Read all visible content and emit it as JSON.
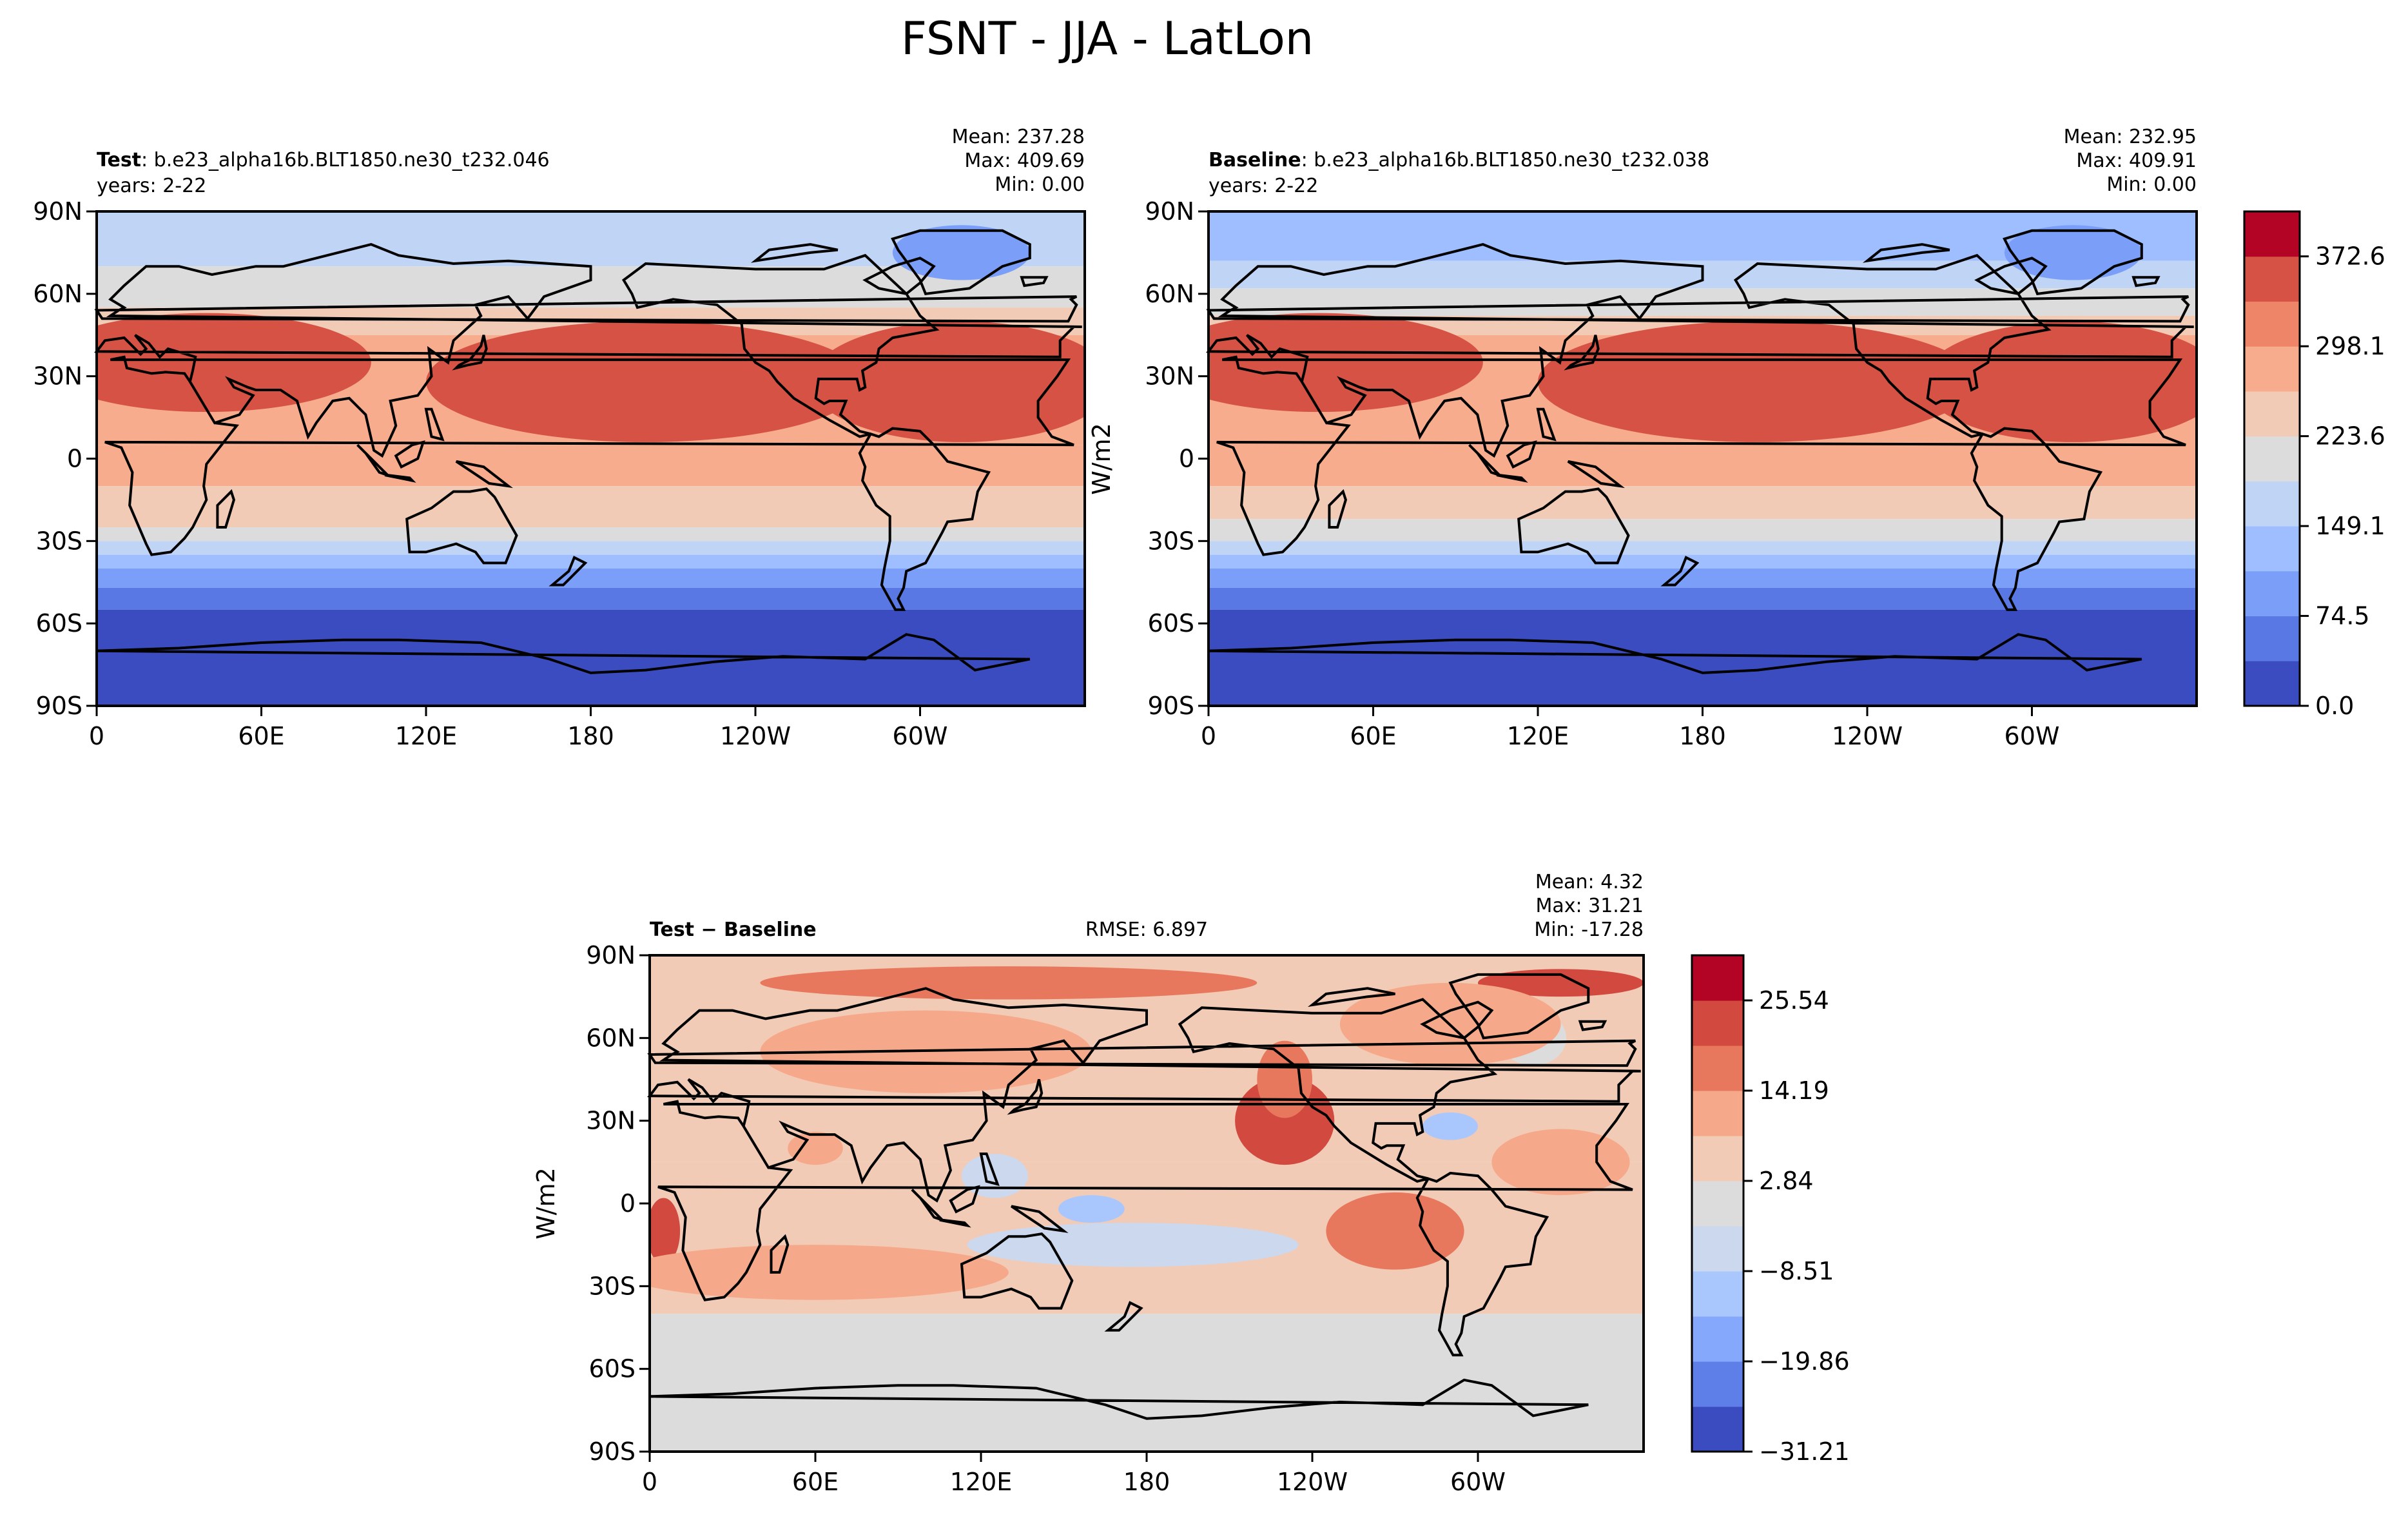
{
  "figure_title": "FSNT - JJA - LatLon",
  "colors": {
    "ocean_land_outline": "#000000",
    "main_scale": [
      "#3b4cc0",
      "#5a78e4",
      "#7b9ff9",
      "#9ebeff",
      "#c0d4f5",
      "#dddcdc",
      "#f2cbb7",
      "#f7ac8e",
      "#ee8468",
      "#d65244",
      "#b40426"
    ],
    "diff_scale": [
      "#3b4cc0",
      "#5f7fe8",
      "#85a8fc",
      "#aac7fd",
      "#cbd8ee",
      "#dddcdc",
      "#f2cbb7",
      "#f6a98a",
      "#e8785d",
      "#d1493f",
      "#b40426"
    ]
  },
  "chart_data": [
    {
      "type": "heatmap",
      "panel": "test",
      "label_bold": "Test",
      "label_rest": ": b.e23_alpha16b.BLT1850.ne30_t232.046",
      "years": "years: 2-22",
      "stats": [
        "Mean: 237.28",
        "Max: 409.69",
        "Min:  0.00"
      ],
      "x_ticks": [
        "0",
        "60E",
        "120E",
        "180",
        "120W",
        "60W"
      ],
      "y_ticks": [
        "90N",
        "60N",
        "30N",
        "0",
        "30S",
        "60S",
        "90S"
      ],
      "x_range": [
        0,
        360
      ],
      "y_range": [
        -90,
        90
      ],
      "zonal_bands": [
        {
          "lat": [
            70,
            90
          ],
          "level": 4
        },
        {
          "lat": [
            55,
            70
          ],
          "level": 5
        },
        {
          "lat": [
            45,
            55
          ],
          "level": 6
        },
        {
          "lat": [
            5,
            45
          ],
          "level": 7
        },
        {
          "lat": [
            -10,
            5
          ],
          "level": 7
        },
        {
          "lat": [
            -25,
            -10
          ],
          "level": 6
        },
        {
          "lat": [
            -30,
            -25
          ],
          "level": 5
        },
        {
          "lat": [
            -35,
            -30
          ],
          "level": 4
        },
        {
          "lat": [
            -40,
            -35
          ],
          "level": 3
        },
        {
          "lat": [
            -47,
            -40
          ],
          "level": 2
        },
        {
          "lat": [
            -55,
            -47
          ],
          "level": 1
        },
        {
          "lat": [
            -90,
            -55
          ],
          "level": 0
        }
      ],
      "hotspots": [
        {
          "lon": 205,
          "lat": 28,
          "rx": 50,
          "ry": 12,
          "level": 10
        },
        {
          "lon": 320,
          "lat": 30,
          "rx": 40,
          "ry": 14,
          "level": 10
        },
        {
          "lon": 30,
          "lat": 33,
          "rx": 30,
          "ry": 10,
          "level": 10
        },
        {
          "lon": 200,
          "lat": 28,
          "rx": 80,
          "ry": 22,
          "level": 9
        },
        {
          "lon": 315,
          "lat": 28,
          "rx": 55,
          "ry": 22,
          "level": 9
        },
        {
          "lon": 40,
          "lat": 35,
          "rx": 60,
          "ry": 18,
          "level": 9
        },
        {
          "lon": 315,
          "lat": 75,
          "rx": 25,
          "ry": 10,
          "level": 2
        }
      ]
    },
    {
      "type": "heatmap",
      "panel": "baseline",
      "label_bold": "Baseline",
      "label_rest": ": b.e23_alpha16b.BLT1850.ne30_t232.038",
      "years": "years: 2-22",
      "stats": [
        "Mean: 232.95",
        "Max: 409.91",
        "Min:  0.00"
      ],
      "x_ticks": [
        "0",
        "60E",
        "120E",
        "180",
        "120W",
        "60W"
      ],
      "y_ticks": [
        "90N",
        "60N",
        "30N",
        "0",
        "30S",
        "60S",
        "90S"
      ],
      "x_range": [
        0,
        360
      ],
      "y_range": [
        -90,
        90
      ],
      "ylabel": "W/m2",
      "colorbar_ticks": [
        "372.6",
        "298.1",
        "223.6",
        "149.1",
        "74.5",
        "0.0"
      ],
      "colorbar_levels": [
        0.0,
        37.3,
        74.5,
        111.8,
        149.1,
        186.3,
        223.6,
        260.8,
        298.1,
        335.3,
        372.6,
        409.9
      ],
      "zonal_bands": [
        {
          "lat": [
            72,
            90
          ],
          "level": 3
        },
        {
          "lat": [
            62,
            72
          ],
          "level": 4
        },
        {
          "lat": [
            52,
            62
          ],
          "level": 5
        },
        {
          "lat": [
            45,
            52
          ],
          "level": 6
        },
        {
          "lat": [
            -10,
            45
          ],
          "level": 7
        },
        {
          "lat": [
            -22,
            -10
          ],
          "level": 6
        },
        {
          "lat": [
            -30,
            -22
          ],
          "level": 5
        },
        {
          "lat": [
            -35,
            -30
          ],
          "level": 4
        },
        {
          "lat": [
            -40,
            -35
          ],
          "level": 3
        },
        {
          "lat": [
            -47,
            -40
          ],
          "level": 2
        },
        {
          "lat": [
            -55,
            -47
          ],
          "level": 1
        },
        {
          "lat": [
            -90,
            -55
          ],
          "level": 0
        }
      ],
      "hotspots": [
        {
          "lon": 205,
          "lat": 28,
          "rx": 45,
          "ry": 11,
          "level": 10
        },
        {
          "lon": 320,
          "lat": 30,
          "rx": 42,
          "ry": 14,
          "level": 10
        },
        {
          "lon": 30,
          "lat": 33,
          "rx": 28,
          "ry": 10,
          "level": 10
        },
        {
          "lon": 200,
          "lat": 28,
          "rx": 80,
          "ry": 22,
          "level": 9
        },
        {
          "lon": 315,
          "lat": 28,
          "rx": 55,
          "ry": 22,
          "level": 9
        },
        {
          "lon": 40,
          "lat": 35,
          "rx": 60,
          "ry": 18,
          "level": 9
        },
        {
          "lon": 315,
          "lat": 75,
          "rx": 25,
          "ry": 10,
          "level": 2
        }
      ]
    },
    {
      "type": "heatmap",
      "panel": "difference",
      "label_bold": "Test − Baseline",
      "rmse": "RMSE: 6.897",
      "stats": [
        "Mean:  4.32",
        "Max: 31.21",
        "Min: -17.28"
      ],
      "x_ticks": [
        "0",
        "60E",
        "120E",
        "180",
        "120W",
        "60W"
      ],
      "y_ticks": [
        "90N",
        "60N",
        "30N",
        "0",
        "30S",
        "60S",
        "90S"
      ],
      "x_range": [
        0,
        360
      ],
      "y_range": [
        -90,
        90
      ],
      "ylabel": "W/m2",
      "colorbar_ticks": [
        "25.54",
        "14.19",
        "2.84",
        "−8.51",
        "−19.86",
        "−31.21"
      ],
      "colorbar_levels": [
        -31.21,
        -25.54,
        -19.86,
        -14.19,
        -8.51,
        -2.84,
        2.84,
        8.51,
        14.19,
        19.86,
        25.54,
        31.21
      ],
      "zonal_bands": [
        {
          "lat": [
            -90,
            -40
          ],
          "level": 5
        },
        {
          "lat": [
            -40,
            15
          ],
          "level": 6
        },
        {
          "lat": [
            15,
            90
          ],
          "level": 6
        }
      ],
      "hotspots": [
        {
          "lon": 230,
          "lat": 32,
          "rx": 8,
          "ry": 6,
          "level": 10
        },
        {
          "lon": 230,
          "lat": 30,
          "rx": 18,
          "ry": 16,
          "level": 9
        },
        {
          "lon": 230,
          "lat": 45,
          "rx": 10,
          "ry": 14,
          "level": 8
        },
        {
          "lon": 270,
          "lat": -10,
          "rx": 12,
          "ry": 6,
          "level": 9
        },
        {
          "lon": 270,
          "lat": -10,
          "rx": 25,
          "ry": 14,
          "level": 8
        },
        {
          "lon": 5,
          "lat": -10,
          "rx": 6,
          "ry": 12,
          "level": 9
        },
        {
          "lon": 130,
          "lat": 80,
          "rx": 90,
          "ry": 6,
          "level": 8
        },
        {
          "lon": 330,
          "lat": 80,
          "rx": 30,
          "ry": 5,
          "level": 9
        },
        {
          "lon": 330,
          "lat": 15,
          "rx": 25,
          "ry": 12,
          "level": 7
        },
        {
          "lon": 60,
          "lat": 20,
          "rx": 10,
          "ry": 6,
          "level": 7
        },
        {
          "lon": 175,
          "lat": -15,
          "rx": 60,
          "ry": 8,
          "level": 4
        },
        {
          "lon": 160,
          "lat": -2,
          "rx": 12,
          "ry": 5,
          "level": 3
        },
        {
          "lon": 125,
          "lat": 10,
          "rx": 12,
          "ry": 8,
          "level": 4
        },
        {
          "lon": 320,
          "lat": 60,
          "rx": 12,
          "ry": 10,
          "level": 5
        },
        {
          "lon": 290,
          "lat": 28,
          "rx": 10,
          "ry": 5,
          "level": 3
        },
        {
          "lon": 290,
          "lat": 65,
          "rx": 40,
          "ry": 15,
          "level": 7
        },
        {
          "lon": 100,
          "lat": 55,
          "rx": 60,
          "ry": 15,
          "level": 7
        },
        {
          "lon": 60,
          "lat": -25,
          "rx": 70,
          "ry": 10,
          "level": 7
        }
      ]
    }
  ]
}
